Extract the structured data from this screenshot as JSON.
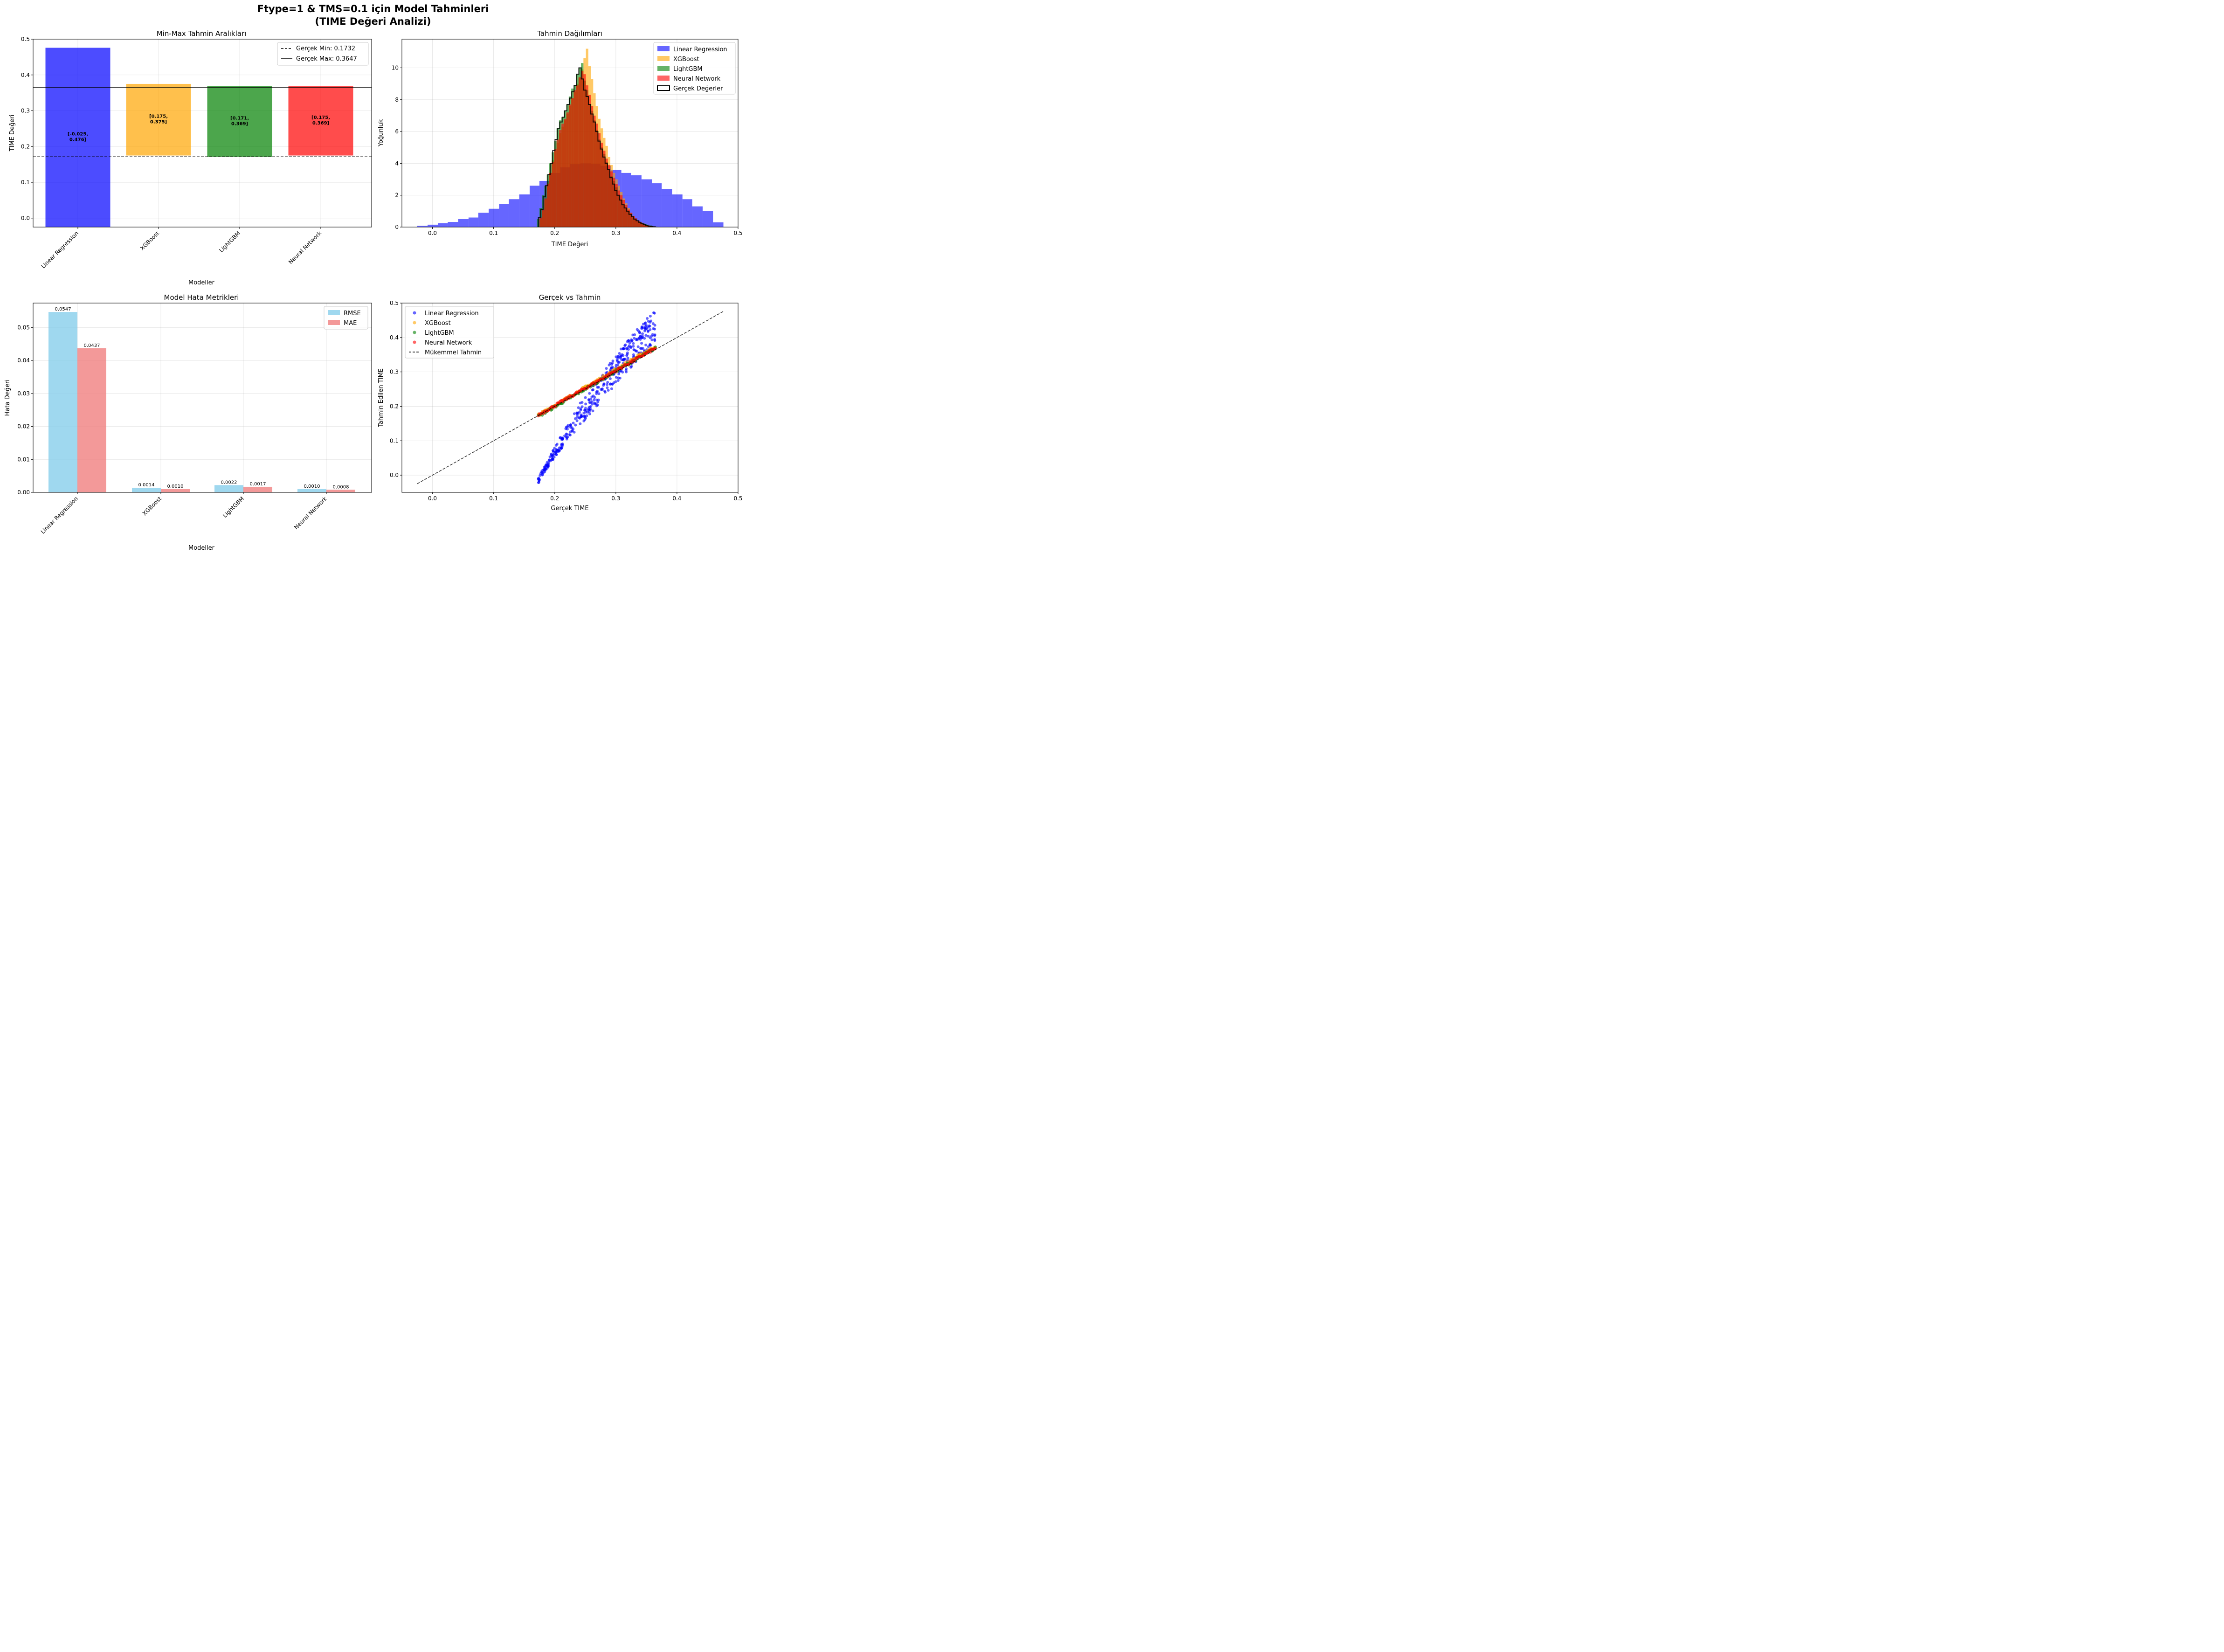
{
  "figure": {
    "title_line1": "Ftype=1 & TMS=0.1 için Model Tahminleri",
    "title_line2": "(TIME Değeri Analizi)"
  },
  "chart_data": [
    {
      "type": "bar",
      "title": "Min-Max Tahmin Aralıkları",
      "xlabel": "Modeller",
      "ylabel": "TIME Değeri",
      "categories": [
        "Linear Regression",
        "XGBoost",
        "LightGBM",
        "Neural Network"
      ],
      "min_values": [
        -0.025,
        0.175,
        0.171,
        0.175
      ],
      "max_values": [
        0.476,
        0.375,
        0.369,
        0.369
      ],
      "range_labels": [
        "[-0.025,\n0.476]",
        "[0.175,\n0.375]",
        "[0.171,\n0.369]",
        "[0.175,\n0.369]"
      ],
      "colors": [
        "#0000ff",
        "#ffa500",
        "#008000",
        "#ff0000"
      ],
      "true_min": 0.1732,
      "true_max": 0.3647,
      "legend": [
        "Gerçek Min: 0.1732",
        "Gerçek Max: 0.3647"
      ],
      "legend_loc": "upper right",
      "ylim": [
        -0.025,
        0.5
      ],
      "yticks": [
        "0.0",
        "0.1",
        "0.2",
        "0.3",
        "0.4",
        "0.5"
      ],
      "grid": true
    },
    {
      "type": "histogram",
      "title": "Tahmin Dağılımları",
      "xlabel": "TIME Değeri",
      "ylabel": "Yoğunluk",
      "xlim": [
        -0.05,
        0.5
      ],
      "ylim": [
        0,
        11.8
      ],
      "xticks": [
        "0.0",
        "0.1",
        "0.2",
        "0.3",
        "0.4",
        "0.5"
      ],
      "yticks": [
        "0",
        "2",
        "4",
        "6",
        "8",
        "10"
      ],
      "legend_loc": "upper right",
      "grid": true,
      "series": [
        {
          "name": "Linear Regression",
          "color": "#0000ff",
          "bins": [
            -0.025,
            -0.008,
            0.009,
            0.025,
            0.042,
            0.059,
            0.075,
            0.092,
            0.109,
            0.125,
            0.142,
            0.159,
            0.175,
            0.192,
            0.209,
            0.225,
            0.242,
            0.259,
            0.275,
            0.292,
            0.309,
            0.325,
            0.342,
            0.359,
            0.375,
            0.392,
            0.409,
            0.425,
            0.442,
            0.459,
            0.476
          ],
          "density": [
            0.08,
            0.15,
            0.25,
            0.32,
            0.5,
            0.6,
            0.9,
            1.15,
            1.45,
            1.75,
            2.05,
            2.6,
            2.9,
            3.4,
            3.75,
            3.95,
            4.0,
            3.98,
            3.85,
            3.6,
            3.4,
            3.25,
            3.0,
            2.75,
            2.4,
            2.05,
            1.75,
            1.3,
            1.0,
            0.3
          ]
        },
        {
          "name": "XGBoost",
          "color": "#ffa500",
          "bins": [
            0.175,
            0.179,
            0.183,
            0.187,
            0.191,
            0.195,
            0.199,
            0.203,
            0.207,
            0.211,
            0.215,
            0.219,
            0.223,
            0.227,
            0.231,
            0.235,
            0.239,
            0.243,
            0.247,
            0.251,
            0.255,
            0.259,
            0.263,
            0.267,
            0.271,
            0.275,
            0.279,
            0.283,
            0.287,
            0.291,
            0.295,
            0.299,
            0.303,
            0.307,
            0.311,
            0.315,
            0.319,
            0.323,
            0.327,
            0.331,
            0.335,
            0.339,
            0.343,
            0.347,
            0.351,
            0.355,
            0.359,
            0.363,
            0.367,
            0.371,
            0.375
          ],
          "density": [
            0.5,
            1.0,
            1.7,
            2.8,
            3.4,
            4.2,
            4.8,
            5.3,
            5.9,
            6.3,
            6.7,
            7.1,
            7.6,
            8.1,
            8.5,
            9.0,
            9.4,
            9.9,
            10.6,
            11.2,
            10.1,
            9.3,
            8.4,
            7.6,
            6.8,
            6.2,
            5.6,
            5.1,
            4.4,
            3.9,
            3.4,
            3.0,
            2.6,
            2.2,
            1.8,
            1.5,
            1.2,
            0.9,
            0.7,
            0.5,
            0.35,
            0.25,
            0.15,
            0.1,
            0.08,
            0.05,
            0.04,
            0.03,
            0.02,
            0.01
          ]
        },
        {
          "name": "LightGBM",
          "color": "#008000",
          "bins": [
            0.171,
            0.175,
            0.179,
            0.183,
            0.187,
            0.191,
            0.195,
            0.199,
            0.203,
            0.207,
            0.211,
            0.215,
            0.219,
            0.223,
            0.227,
            0.231,
            0.235,
            0.239,
            0.243,
            0.247,
            0.251,
            0.255,
            0.259,
            0.263,
            0.267,
            0.271,
            0.275,
            0.279,
            0.283,
            0.287,
            0.291,
            0.295,
            0.299,
            0.303,
            0.307,
            0.311,
            0.315,
            0.319,
            0.323,
            0.327,
            0.331,
            0.335,
            0.339,
            0.343,
            0.347,
            0.351,
            0.355,
            0.359,
            0.363,
            0.367,
            0.369
          ],
          "density": [
            0.5,
            1.2,
            2.0,
            2.6,
            3.3,
            4.0,
            4.7,
            5.4,
            6.2,
            6.7,
            6.9,
            7.3,
            7.7,
            8.2,
            8.7,
            8.9,
            9.6,
            10.0,
            10.3,
            9.2,
            8.6,
            7.7,
            7.3,
            6.7,
            6.1,
            5.5,
            5.0,
            4.6,
            4.1,
            3.6,
            3.2,
            2.9,
            2.5,
            2.0,
            1.7,
            1.4,
            1.2,
            1.0,
            0.8,
            0.6,
            0.5,
            0.4,
            0.3,
            0.25,
            0.2,
            0.15,
            0.1,
            0.05,
            0.03,
            0.02
          ]
        },
        {
          "name": "Neural Network",
          "color": "#ff0000",
          "bins": [
            0.175,
            0.179,
            0.183,
            0.187,
            0.191,
            0.195,
            0.199,
            0.203,
            0.207,
            0.211,
            0.215,
            0.219,
            0.223,
            0.227,
            0.231,
            0.235,
            0.239,
            0.243,
            0.247,
            0.251,
            0.255,
            0.259,
            0.263,
            0.267,
            0.271,
            0.275,
            0.279,
            0.283,
            0.287,
            0.291,
            0.295,
            0.299,
            0.303,
            0.307,
            0.311,
            0.315,
            0.319,
            0.323,
            0.327,
            0.331,
            0.335,
            0.339,
            0.343,
            0.347,
            0.351,
            0.355,
            0.359,
            0.363,
            0.367,
            0.369
          ],
          "density": [
            0.6,
            1.1,
            1.8,
            2.7,
            3.4,
            4.1,
            4.9,
            5.5,
            6.1,
            6.5,
            6.8,
            7.2,
            7.7,
            8.1,
            8.6,
            8.9,
            9.4,
            9.8,
            9.6,
            8.9,
            8.3,
            7.6,
            7.0,
            6.5,
            5.9,
            5.3,
            4.8,
            4.3,
            3.9,
            3.5,
            3.1,
            2.7,
            2.3,
            2.0,
            1.7,
            1.4,
            1.1,
            0.9,
            0.7,
            0.55,
            0.4,
            0.3,
            0.22,
            0.15,
            0.1,
            0.06,
            0.04,
            0.02,
            0.01
          ]
        },
        {
          "name": "Gerçek Değerler",
          "color": "#000000",
          "style": "step",
          "bins": [
            0.1732,
            0.1771,
            0.181,
            0.1849,
            0.1888,
            0.1927,
            0.1966,
            0.2005,
            0.2044,
            0.2083,
            0.2122,
            0.2161,
            0.22,
            0.2239,
            0.2278,
            0.2317,
            0.2356,
            0.2395,
            0.2434,
            0.2473,
            0.2512,
            0.2551,
            0.259,
            0.2629,
            0.2668,
            0.2707,
            0.2746,
            0.2785,
            0.2824,
            0.2863,
            0.2902,
            0.2941,
            0.298,
            0.3019,
            0.3058,
            0.3097,
            0.3136,
            0.3175,
            0.3214,
            0.3253,
            0.3292,
            0.3331,
            0.337,
            0.3409,
            0.3448,
            0.3487,
            0.3526,
            0.3565,
            0.3604,
            0.3647
          ],
          "density": [
            0.6,
            1.1,
            1.9,
            2.6,
            3.3,
            4.0,
            4.8,
            5.5,
            6.2,
            6.6,
            6.9,
            7.3,
            7.7,
            8.1,
            8.5,
            8.9,
            9.6,
            10.0,
            9.3,
            8.6,
            8.2,
            7.7,
            7.1,
            6.6,
            6.0,
            5.4,
            4.9,
            4.4,
            4.0,
            3.6,
            3.1,
            2.7,
            2.3,
            2.0,
            1.7,
            1.4,
            1.2,
            1.0,
            0.8,
            0.65,
            0.5,
            0.4,
            0.3,
            0.22,
            0.15,
            0.1,
            0.06,
            0.04,
            0.02
          ]
        }
      ]
    },
    {
      "type": "bar",
      "title": "Model Hata Metrikleri",
      "xlabel": "Modeller",
      "ylabel": "Hata Değeri",
      "categories": [
        "Linear Regression",
        "XGBoost",
        "LightGBM",
        "Neural Network"
      ],
      "series": [
        {
          "name": "RMSE",
          "color": "#87ceeb",
          "values": [
            0.0547,
            0.0014,
            0.0022,
            0.001
          ],
          "labels": [
            "0.0547",
            "0.0014",
            "0.0022",
            "0.0010"
          ]
        },
        {
          "name": "MAE",
          "color": "#f08080",
          "values": [
            0.0437,
            0.001,
            0.0017,
            0.0008
          ],
          "labels": [
            "0.0437",
            "0.0010",
            "0.0017",
            "0.0008"
          ]
        }
      ],
      "ylim": [
        0,
        0.0574
      ],
      "yticks": [
        "0.00",
        "0.01",
        "0.02",
        "0.03",
        "0.04",
        "0.05"
      ],
      "legend_loc": "upper right",
      "grid": true
    },
    {
      "type": "scatter",
      "title": "Gerçek vs Tahmin",
      "xlabel": "Gerçek TIME",
      "ylabel": "Tahmin Edilen TIME",
      "xlim": [
        -0.05,
        0.5
      ],
      "ylim": [
        -0.05,
        0.5
      ],
      "xticks": [
        "0.0",
        "0.1",
        "0.2",
        "0.3",
        "0.4",
        "0.5"
      ],
      "yticks": [
        "0.0",
        "0.1",
        "0.2",
        "0.3",
        "0.4",
        "0.5"
      ],
      "legend_loc": "upper left",
      "grid": true,
      "series": [
        {
          "name": "Linear Regression",
          "color": "#0000ff",
          "x_range": [
            0.1732,
            0.3647
          ],
          "y_range": [
            -0.025,
            0.476
          ]
        },
        {
          "name": "XGBoost",
          "color": "#ffa500",
          "x_range": [
            0.1732,
            0.3647
          ],
          "y_range": [
            0.175,
            0.375
          ]
        },
        {
          "name": "LightGBM",
          "color": "#008000",
          "x_range": [
            0.1732,
            0.3647
          ],
          "y_range": [
            0.171,
            0.369
          ]
        },
        {
          "name": "Neural Network",
          "color": "#ff0000",
          "x_range": [
            0.1732,
            0.3647
          ],
          "y_range": [
            0.175,
            0.369
          ]
        }
      ],
      "reference_line": {
        "name": "Mükemmel Tahmin",
        "x": [
          -0.025,
          0.476
        ],
        "y": [
          -0.025,
          0.476
        ]
      }
    }
  ]
}
